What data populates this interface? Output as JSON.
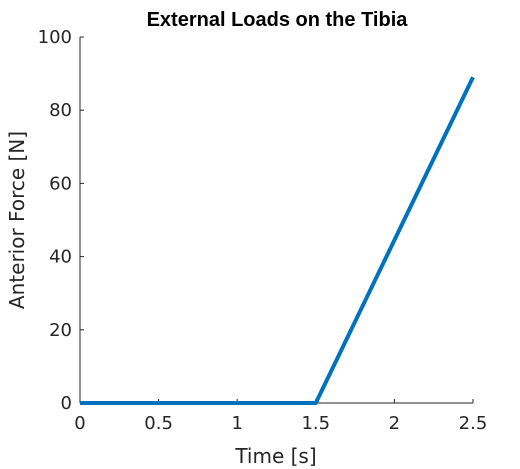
{
  "chart_data": {
    "type": "line",
    "title": "External Loads on the Tibia",
    "xlabel": "Time [s]",
    "ylabel": "Anterior Force [N]",
    "xlim": [
      0,
      2.5
    ],
    "ylim": [
      0,
      100
    ],
    "xticks": [
      0,
      0.5,
      1,
      1.5,
      2,
      2.5
    ],
    "xtick_labels": [
      "0",
      "0.5",
      "1",
      "1.5",
      "2",
      "2.5"
    ],
    "yticks": [
      0,
      20,
      40,
      60,
      80,
      100
    ],
    "ytick_labels": [
      "0",
      "20",
      "40",
      "60",
      "80",
      "100"
    ],
    "grid": false,
    "legend": "none",
    "series": [
      {
        "color": "#0072BD",
        "x": [
          0,
          1.5,
          2.5
        ],
        "y": [
          0,
          0,
          89
        ]
      }
    ]
  }
}
